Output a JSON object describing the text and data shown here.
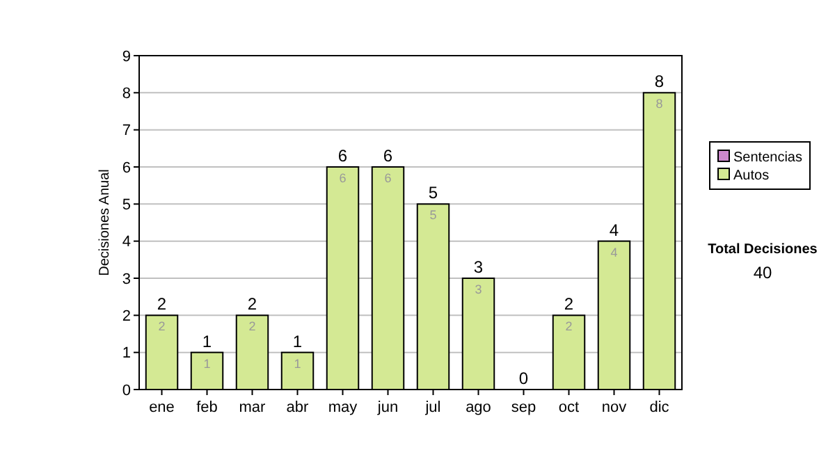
{
  "chart_data": {
    "type": "bar",
    "stacked": true,
    "ylabel": "Decisiones Anual",
    "categories": [
      "ene",
      "feb",
      "mar",
      "abr",
      "may",
      "jun",
      "jul",
      "ago",
      "sep",
      "oct",
      "nov",
      "dic"
    ],
    "series": [
      {
        "name": "Sentencias",
        "color": "#cc88cc",
        "values": [
          0,
          0,
          0,
          0,
          0,
          0,
          0,
          0,
          0,
          0,
          0,
          0
        ]
      },
      {
        "name": "Autos",
        "color": "#d4e994",
        "values": [
          2,
          1,
          2,
          1,
          6,
          6,
          5,
          3,
          0,
          2,
          4,
          8
        ],
        "value_labels": [
          "2",
          "1",
          "2",
          "1",
          "6",
          "6",
          "5",
          "3",
          null,
          "2",
          "4",
          "8"
        ]
      }
    ],
    "totals": [
      "2",
      "1",
      "2",
      "1",
      "6",
      "6",
      "5",
      "3",
      "0",
      "2",
      "4",
      "8"
    ],
    "ylim": [
      0,
      9
    ],
    "yticks": [
      0,
      1,
      2,
      3,
      4,
      5,
      6,
      7,
      8,
      9
    ],
    "grid": "y",
    "legend": "right",
    "annotations": [
      "Total Decisiones",
      "40"
    ]
  }
}
